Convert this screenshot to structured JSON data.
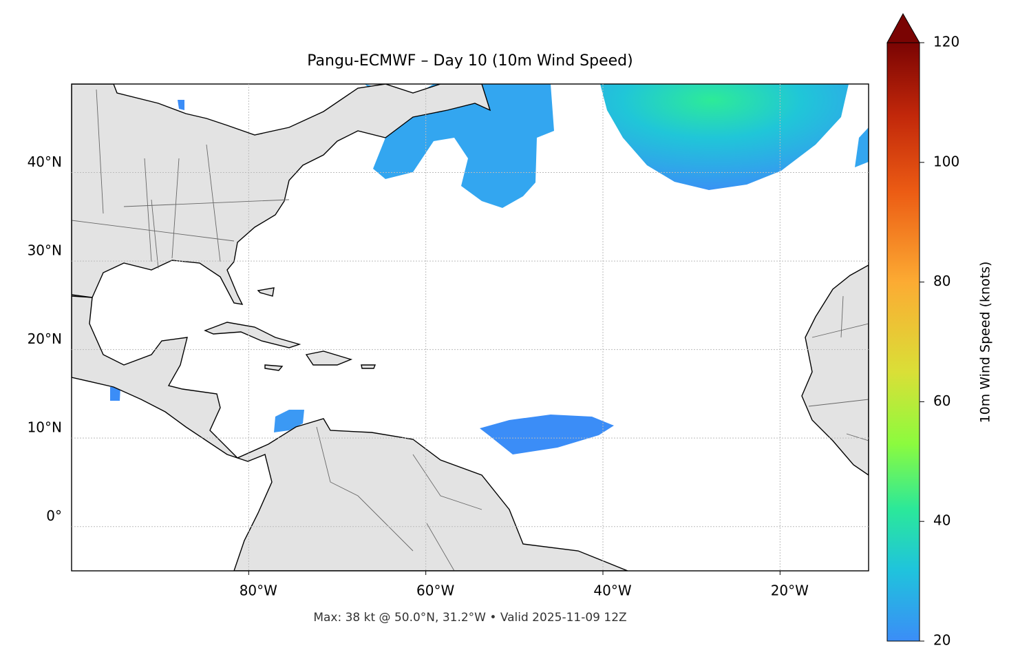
{
  "chart_data": {
    "type": "map",
    "title": "Pangu-ECMWF – Day 10 (10m Wind Speed)",
    "footer": "Max: 38 kt @ 50.0°N, 31.2°W • Valid 2025-11-09 12Z",
    "xlim": [
      -100,
      -10
    ],
    "ylim": [
      -5,
      50
    ],
    "xticks": [
      {
        "value": -80,
        "label": "80°W"
      },
      {
        "value": -60,
        "label": "60°W"
      },
      {
        "value": -40,
        "label": "40°W"
      },
      {
        "value": -20,
        "label": "20°W"
      }
    ],
    "yticks": [
      {
        "value": 0,
        "label": "0°"
      },
      {
        "value": 10,
        "label": "10°N"
      },
      {
        "value": 20,
        "label": "20°N"
      },
      {
        "value": 30,
        "label": "30°N"
      },
      {
        "value": 40,
        "label": "40°N"
      }
    ],
    "grid": true,
    "colorbar": {
      "label": "10m Wind Speed (knots)",
      "lim": [
        20,
        120
      ],
      "ticks": [
        20,
        40,
        60,
        80,
        100,
        120
      ]
    }
  }
}
